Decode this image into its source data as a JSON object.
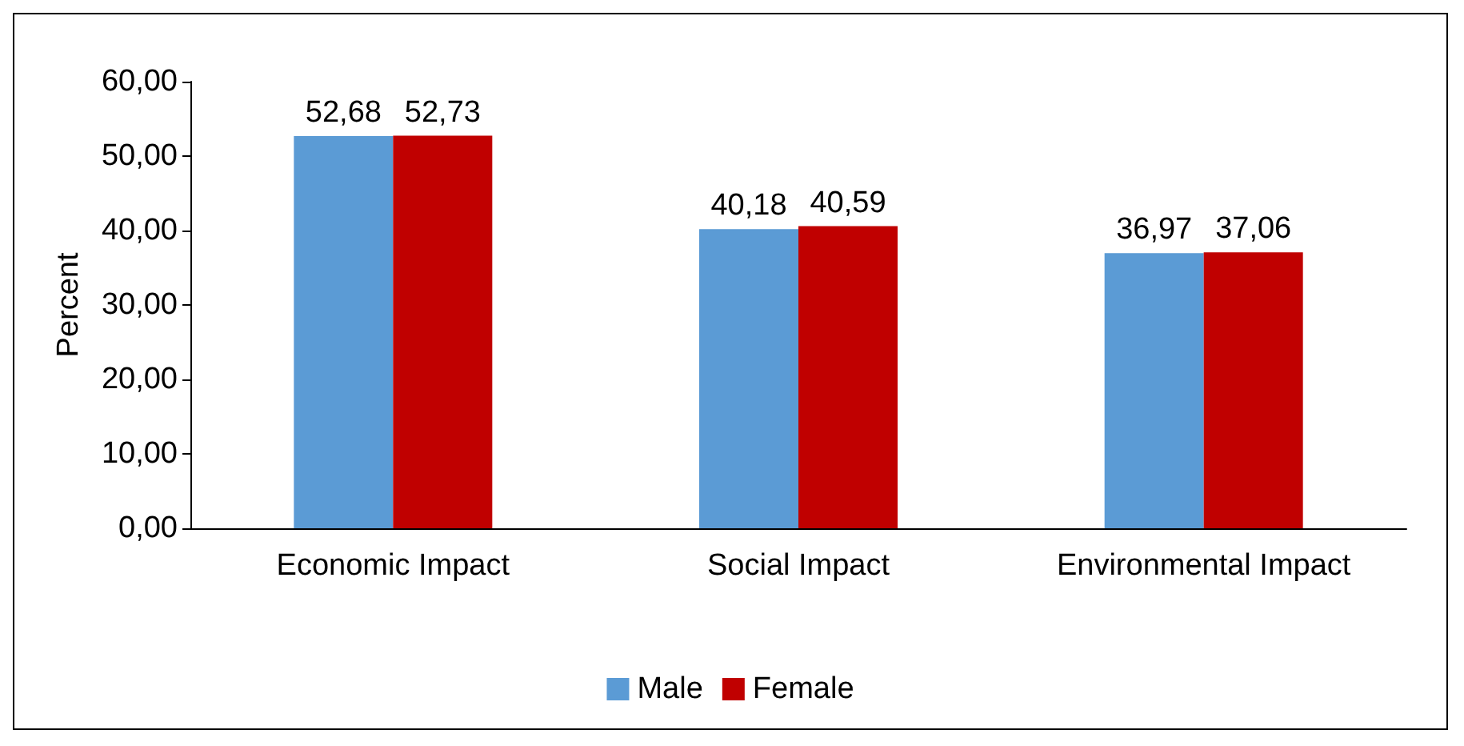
{
  "chart_data": {
    "type": "bar",
    "ylabel": "Percent",
    "categories": [
      "Economic Impact",
      "Social Impact",
      "Environmental Impact"
    ],
    "series": [
      {
        "name": "Male",
        "color": "#5b9bd5",
        "values": [
          52.68,
          40.18,
          36.97
        ],
        "value_labels": [
          "52,68",
          "40,18",
          "36,97"
        ]
      },
      {
        "name": "Female",
        "color": "#c00000",
        "values": [
          52.73,
          40.59,
          37.06
        ],
        "value_labels": [
          "52,73",
          "40,59",
          "37,06"
        ]
      }
    ],
    "ylim": [
      0,
      60
    ],
    "yticks": [
      {
        "value": 0,
        "label": "0,00"
      },
      {
        "value": 10,
        "label": "10,00"
      },
      {
        "value": 20,
        "label": "20,00"
      },
      {
        "value": 30,
        "label": "30,00"
      },
      {
        "value": 40,
        "label": "40,00"
      },
      {
        "value": 50,
        "label": "50,00"
      },
      {
        "value": 60,
        "label": "60,00"
      }
    ],
    "grid": false,
    "legend": "bottom"
  }
}
